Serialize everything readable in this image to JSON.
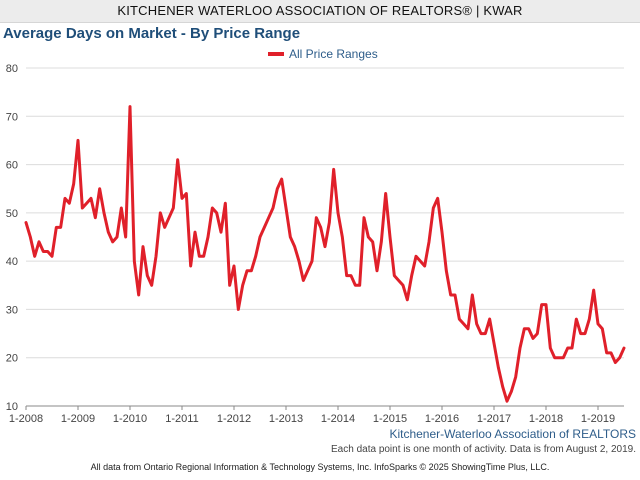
{
  "header": {
    "text": "KITCHENER WATERLOO ASSOCIATION OF REALTORS® | KWAR"
  },
  "chart_title": "Average Days on Market - By Price Range",
  "brand": "Kitchener-Waterloo Association of REALTORS",
  "note": "Each data point is one month of activity. Data is from August 2, 2019.",
  "footer": "All data from Ontario Regional Information & Technology Systems, Inc. InfoSparks © 2025 ShowingTime Plus, LLC.",
  "colors": {
    "series": "#e0202a",
    "title": "#1f4e79",
    "grid": "#dcdcdc",
    "axis": "#444444"
  },
  "chart_data": {
    "type": "line",
    "grid": true,
    "legend_position": "top-center",
    "ylim": [
      10,
      80
    ],
    "yticks": [
      10,
      20,
      30,
      40,
      50,
      60,
      70,
      80
    ],
    "x_range": [
      "1-2008",
      "7-2019"
    ],
    "xtick_labels": [
      "1-2008",
      "1-2009",
      "1-2010",
      "1-2011",
      "1-2012",
      "1-2013",
      "1-2014",
      "1-2015",
      "1-2016",
      "1-2017",
      "1-2018",
      "1-2019"
    ],
    "series": [
      {
        "name": "All Price Ranges",
        "color": "#e0202a",
        "x": [
          "1-2008",
          "2-2008",
          "3-2008",
          "4-2008",
          "5-2008",
          "6-2008",
          "7-2008",
          "8-2008",
          "9-2008",
          "10-2008",
          "11-2008",
          "12-2008",
          "1-2009",
          "2-2009",
          "3-2009",
          "4-2009",
          "5-2009",
          "6-2009",
          "7-2009",
          "8-2009",
          "9-2009",
          "10-2009",
          "11-2009",
          "12-2009",
          "1-2010",
          "2-2010",
          "3-2010",
          "4-2010",
          "5-2010",
          "6-2010",
          "7-2010",
          "8-2010",
          "9-2010",
          "10-2010",
          "11-2010",
          "12-2010",
          "1-2011",
          "2-2011",
          "3-2011",
          "4-2011",
          "5-2011",
          "6-2011",
          "7-2011",
          "8-2011",
          "9-2011",
          "10-2011",
          "11-2011",
          "12-2011",
          "1-2012",
          "2-2012",
          "3-2012",
          "4-2012",
          "5-2012",
          "6-2012",
          "7-2012",
          "8-2012",
          "9-2012",
          "10-2012",
          "11-2012",
          "12-2012",
          "1-2013",
          "2-2013",
          "3-2013",
          "4-2013",
          "5-2013",
          "6-2013",
          "7-2013",
          "8-2013",
          "9-2013",
          "10-2013",
          "11-2013",
          "12-2013",
          "1-2014",
          "2-2014",
          "3-2014",
          "4-2014",
          "5-2014",
          "6-2014",
          "7-2014",
          "8-2014",
          "9-2014",
          "10-2014",
          "11-2014",
          "12-2014",
          "1-2015",
          "2-2015",
          "3-2015",
          "4-2015",
          "5-2015",
          "6-2015",
          "7-2015",
          "8-2015",
          "9-2015",
          "10-2015",
          "11-2015",
          "12-2015",
          "1-2016",
          "2-2016",
          "3-2016",
          "4-2016",
          "5-2016",
          "6-2016",
          "7-2016",
          "8-2016",
          "9-2016",
          "10-2016",
          "11-2016",
          "12-2016",
          "1-2017",
          "2-2017",
          "3-2017",
          "4-2017",
          "5-2017",
          "6-2017",
          "7-2017",
          "8-2017",
          "9-2017",
          "10-2017",
          "11-2017",
          "12-2017",
          "1-2018",
          "2-2018",
          "3-2018",
          "4-2018",
          "5-2018",
          "6-2018",
          "7-2018",
          "8-2018",
          "9-2018",
          "10-2018",
          "11-2018",
          "12-2018",
          "1-2019",
          "2-2019",
          "3-2019",
          "4-2019",
          "5-2019",
          "6-2019",
          "7-2019"
        ],
        "values": [
          48,
          45,
          41,
          44,
          42,
          42,
          41,
          47,
          47,
          53,
          52,
          56,
          65,
          51,
          52,
          53,
          49,
          55,
          50,
          46,
          44,
          45,
          51,
          45,
          72,
          40,
          33,
          43,
          37,
          35,
          41,
          50,
          47,
          49,
          51,
          61,
          53,
          54,
          39,
          46,
          41,
          41,
          45,
          51,
          50,
          46,
          52,
          35,
          39,
          30,
          35,
          38,
          38,
          41,
          45,
          47,
          49,
          51,
          55,
          57,
          51,
          45,
          43,
          40,
          36,
          38,
          40,
          49,
          47,
          43,
          48,
          59,
          50,
          45,
          37,
          37,
          35,
          35,
          49,
          45,
          44,
          38,
          44,
          54,
          45,
          37,
          36,
          35,
          32,
          37,
          41,
          40,
          39,
          44,
          51,
          53,
          46,
          38,
          33,
          33,
          28,
          27,
          26,
          33,
          27,
          25,
          25,
          28,
          23,
          18,
          14,
          11,
          13,
          16,
          22,
          26,
          26,
          24,
          25,
          31,
          31,
          22,
          20,
          20,
          20,
          22,
          22,
          28,
          25,
          25,
          28,
          34,
          27,
          26,
          21,
          21,
          19,
          20,
          22
        ]
      }
    ]
  }
}
